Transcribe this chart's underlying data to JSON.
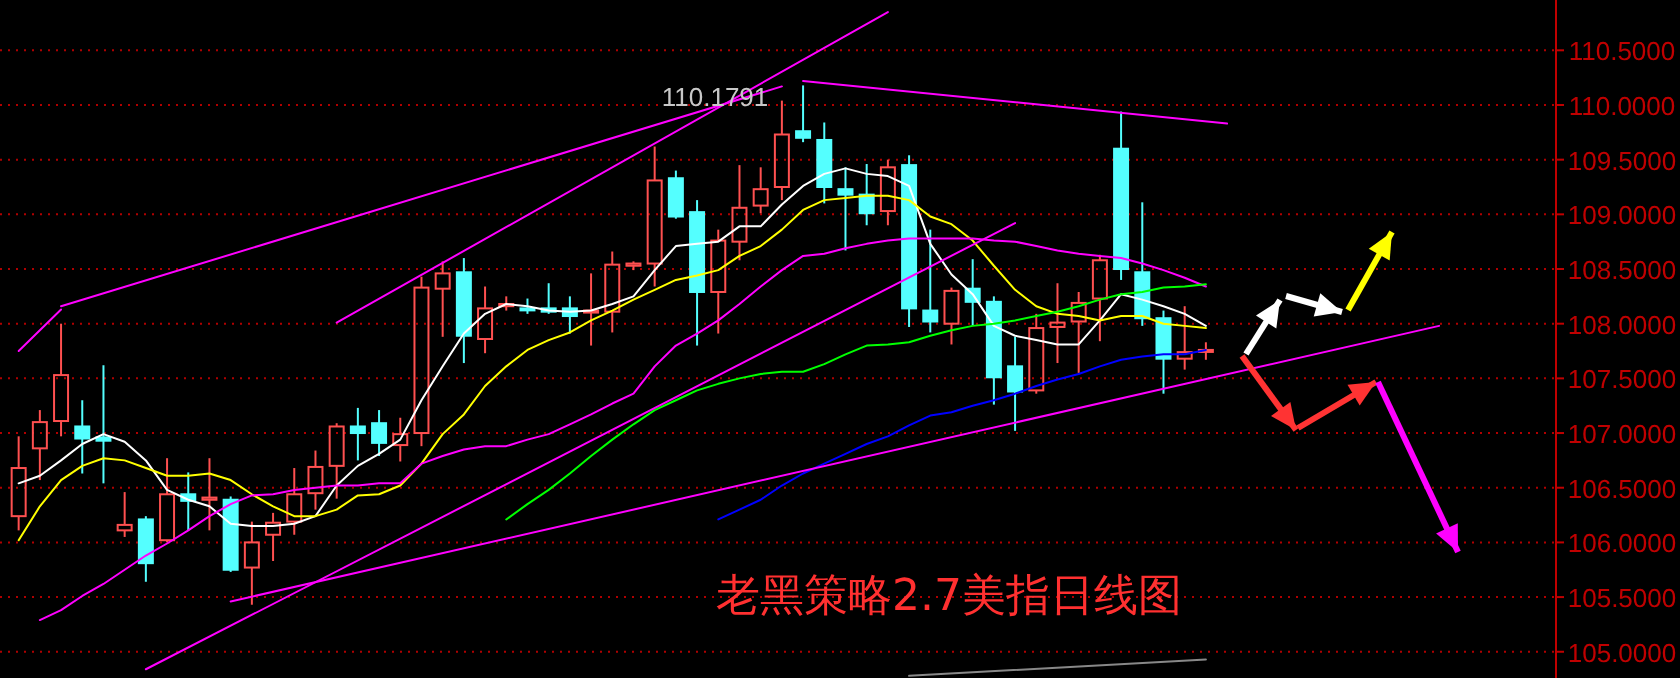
{
  "chart_data": {
    "type": "candlestick",
    "title": "老黑策略2.7美指日线图",
    "annotations": [
      "110.1791"
    ],
    "categories": [
      null,
      null,
      null,
      null,
      null,
      null,
      null,
      null,
      null,
      null,
      null,
      null,
      null,
      null,
      null,
      null,
      null,
      null,
      null,
      null,
      null,
      null,
      null,
      null,
      null,
      null,
      null,
      null,
      null,
      null,
      null,
      null,
      null,
      null,
      null,
      null,
      null,
      null,
      null,
      null,
      null,
      null,
      null,
      null,
      null,
      null,
      null,
      null,
      null,
      null,
      null,
      null,
      null,
      null,
      null,
      null,
      null,
      null,
      null,
      null,
      null,
      null,
      null,
      null,
      null,
      null,
      null,
      null
    ],
    "ohlc": [
      [
        106.24,
        106.97,
        106.11,
        106.68
      ],
      [
        106.86,
        107.21,
        106.57,
        107.1
      ],
      [
        107.11,
        108.0,
        106.97,
        107.53
      ],
      [
        107.06,
        107.3,
        106.63,
        106.95
      ],
      [
        106.96,
        107.62,
        106.54,
        106.93
      ],
      [
        106.11,
        106.46,
        106.05,
        106.16
      ],
      [
        106.21,
        106.24,
        105.64,
        105.81
      ],
      [
        106.02,
        106.77,
        106.0,
        106.44
      ],
      [
        106.44,
        106.64,
        106.11,
        106.38
      ],
      [
        106.39,
        106.77,
        106.11,
        106.41
      ],
      [
        106.39,
        106.42,
        105.73,
        105.75
      ],
      [
        105.77,
        106.19,
        105.43,
        106.0
      ],
      [
        106.07,
        106.27,
        105.83,
        106.18
      ],
      [
        106.19,
        106.68,
        106.07,
        106.44
      ],
      [
        106.45,
        106.84,
        106.3,
        106.69
      ],
      [
        106.7,
        107.09,
        106.4,
        107.06
      ],
      [
        107.06,
        107.23,
        106.75,
        107.0
      ],
      [
        107.09,
        107.21,
        106.79,
        106.91
      ],
      [
        106.89,
        107.14,
        106.74,
        106.99
      ],
      [
        107.0,
        108.43,
        106.88,
        108.33
      ],
      [
        108.32,
        108.57,
        107.88,
        108.46
      ],
      [
        108.47,
        108.6,
        107.64,
        107.89
      ],
      [
        107.86,
        108.34,
        107.73,
        108.14
      ],
      [
        108.16,
        108.25,
        108.12,
        108.18
      ],
      [
        108.14,
        108.23,
        108.09,
        108.13
      ],
      [
        108.14,
        108.37,
        108.09,
        108.11
      ],
      [
        108.14,
        108.25,
        107.91,
        108.07
      ],
      [
        108.11,
        108.46,
        107.8,
        108.12
      ],
      [
        108.11,
        108.66,
        107.92,
        108.54
      ],
      [
        108.53,
        108.57,
        108.49,
        108.55
      ],
      [
        108.55,
        109.62,
        108.34,
        109.31
      ],
      [
        109.33,
        109.4,
        108.96,
        108.98
      ],
      [
        109.02,
        109.13,
        107.8,
        108.29
      ],
      [
        108.29,
        108.86,
        107.91,
        108.76
      ],
      [
        108.75,
        109.45,
        108.58,
        109.06
      ],
      [
        109.08,
        109.43,
        109.01,
        109.23
      ],
      [
        109.25,
        110.04,
        109.13,
        109.73
      ],
      [
        109.76,
        110.1791,
        109.66,
        109.7
      ],
      [
        109.68,
        109.84,
        109.1,
        109.25
      ],
      [
        109.23,
        109.43,
        108.67,
        109.18
      ],
      [
        109.18,
        109.46,
        108.9,
        109.01
      ],
      [
        109.03,
        109.5,
        108.9,
        109.43
      ],
      [
        109.45,
        109.54,
        107.97,
        108.14
      ],
      [
        108.12,
        108.86,
        107.92,
        108.02
      ],
      [
        108.0,
        108.33,
        107.81,
        108.3
      ],
      [
        108.32,
        108.59,
        107.98,
        108.2
      ],
      [
        108.2,
        108.25,
        107.26,
        107.51
      ],
      [
        107.61,
        107.88,
        107.02,
        107.38
      ],
      [
        107.39,
        108.09,
        107.36,
        107.96
      ],
      [
        107.97,
        108.37,
        107.64,
        108.01
      ],
      [
        108.02,
        108.29,
        107.55,
        108.19
      ],
      [
        108.23,
        108.63,
        107.84,
        108.58
      ],
      [
        109.6,
        109.94,
        108.4,
        108.5
      ],
      [
        108.47,
        109.11,
        107.98,
        108.05
      ],
      [
        108.05,
        108.12,
        107.36,
        107.68
      ],
      [
        107.68,
        108.16,
        107.58,
        107.74
      ],
      [
        107.75,
        107.83,
        107.67,
        107.76
      ],
      null,
      null,
      null,
      null,
      null,
      null,
      null,
      null,
      null,
      null,
      null
    ],
    "colors": [
      "#ff5050",
      "#ff5050",
      "#ff5050",
      "#54ffff",
      "#54ffff",
      "#ff5050",
      "#54ffff",
      "#ff5050",
      "#54ffff",
      "#ff5050",
      "#54ffff",
      "#ff5050",
      "#ff5050",
      "#ff5050",
      "#ff5050",
      "#ff5050",
      "#54ffff",
      "#54ffff",
      "#ff5050",
      "#ff5050",
      "#ff5050",
      "#54ffff",
      "#ff5050",
      "#ff5050",
      "#54ffff",
      "#54ffff",
      "#54ffff",
      "#ff5050",
      "#ff5050",
      "#ff5050",
      "#ff5050",
      "#54ffff",
      "#54ffff",
      "#ff5050",
      "#ff5050",
      "#ff5050",
      "#ff5050",
      "#54ffff",
      "#54ffff",
      "#54ffff",
      "#54ffff",
      "#ff5050",
      "#54ffff",
      "#54ffff",
      "#ff5050",
      "#54ffff",
      "#54ffff",
      "#54ffff",
      "#ff5050",
      "#ff5050",
      "#ff5050",
      "#ff5050",
      "#54ffff",
      "#54ffff",
      "#54ffff",
      "#ff5050",
      "#ff5050",
      null,
      null,
      null,
      null,
      null,
      null,
      null,
      null,
      null,
      null,
      null
    ],
    "series": [
      {
        "type": "line",
        "color": "#ffffff",
        "values": [
          106.54,
          106.61,
          106.75,
          106.9,
          106.99,
          106.92,
          106.75,
          106.48,
          106.39,
          106.33,
          106.17,
          106.15,
          106.15,
          106.17,
          106.24,
          106.52,
          106.7,
          106.81,
          106.94,
          107.3,
          107.61,
          107.91,
          108.09,
          108.18,
          108.16,
          108.12,
          108.11,
          108.12,
          108.18,
          108.25,
          108.49,
          108.71,
          108.73,
          108.75,
          108.89,
          108.89,
          109.09,
          109.26,
          109.37,
          109.42,
          109.37,
          109.35,
          109.26,
          108.73,
          108.45,
          108.27,
          107.98,
          107.89,
          107.85,
          107.81,
          107.81,
          108.03,
          108.27,
          108.22,
          108.16,
          108.09,
          107.98,
          null,
          null,
          null,
          null,
          null,
          null,
          null,
          null,
          null,
          null,
          null
        ]
      },
      {
        "type": "line",
        "color": "#ffff00",
        "values": [
          106.02,
          106.33,
          106.57,
          106.7,
          106.77,
          106.75,
          106.68,
          106.61,
          106.61,
          106.63,
          106.57,
          106.44,
          106.33,
          106.24,
          106.24,
          106.3,
          106.43,
          106.44,
          106.52,
          106.72,
          106.99,
          107.17,
          107.43,
          107.61,
          107.76,
          107.85,
          107.92,
          108.03,
          108.12,
          108.22,
          108.31,
          108.4,
          108.44,
          108.49,
          108.62,
          108.71,
          108.86,
          109.04,
          109.13,
          109.15,
          109.17,
          109.17,
          109.13,
          108.98,
          108.91,
          108.76,
          108.53,
          108.31,
          108.16,
          108.09,
          108.07,
          108.03,
          108.07,
          108.07,
          108.0,
          107.98,
          107.96,
          null,
          null,
          null,
          null,
          null,
          null,
          null,
          null,
          null,
          null,
          null
        ]
      },
      {
        "type": "line",
        "color": "#ff00ff",
        "values": [
          null,
          105.29,
          105.38,
          105.51,
          105.62,
          105.75,
          105.88,
          105.99,
          106.11,
          106.24,
          106.35,
          106.43,
          106.44,
          106.48,
          106.5,
          106.52,
          106.52,
          106.54,
          106.54,
          106.72,
          106.79,
          106.85,
          106.88,
          106.88,
          106.94,
          106.99,
          107.08,
          107.17,
          107.27,
          107.36,
          107.61,
          107.8,
          107.91,
          108.03,
          108.18,
          108.34,
          108.49,
          108.62,
          108.64,
          108.69,
          108.73,
          108.76,
          108.78,
          108.78,
          108.78,
          108.78,
          108.76,
          108.75,
          108.71,
          108.67,
          108.64,
          108.62,
          108.6,
          108.55,
          108.49,
          108.42,
          108.34,
          null,
          null,
          null,
          null,
          null,
          null,
          null,
          null,
          null,
          null,
          null
        ]
      },
      {
        "type": "line",
        "color": "#00ff00",
        "values": [
          null,
          null,
          null,
          null,
          null,
          null,
          null,
          null,
          null,
          null,
          null,
          null,
          null,
          null,
          null,
          null,
          null,
          null,
          null,
          null,
          null,
          null,
          null,
          106.21,
          106.35,
          106.48,
          106.63,
          106.79,
          106.94,
          107.08,
          107.21,
          107.3,
          107.39,
          107.45,
          107.5,
          107.54,
          107.56,
          107.56,
          107.63,
          107.72,
          107.8,
          107.81,
          107.83,
          107.89,
          107.94,
          107.98,
          108.0,
          108.03,
          108.07,
          108.11,
          108.16,
          108.22,
          108.27,
          108.29,
          108.33,
          108.34,
          108.36,
          null,
          null,
          null,
          null,
          null,
          null,
          null,
          null,
          null,
          null,
          null
        ]
      },
      {
        "type": "line",
        "color": "#0000ff",
        "values": [
          null,
          null,
          null,
          null,
          null,
          null,
          null,
          null,
          null,
          null,
          null,
          null,
          null,
          null,
          null,
          null,
          null,
          null,
          null,
          null,
          null,
          null,
          null,
          null,
          null,
          null,
          null,
          null,
          null,
          null,
          null,
          null,
          null,
          106.21,
          106.3,
          106.39,
          106.52,
          106.63,
          106.72,
          106.81,
          106.9,
          106.97,
          107.07,
          107.16,
          107.19,
          107.25,
          107.3,
          107.36,
          107.43,
          107.49,
          107.54,
          107.61,
          107.67,
          107.7,
          107.72,
          107.72,
          107.76,
          null,
          null,
          null,
          null,
          null,
          null,
          null,
          null,
          null,
          null,
          null
        ]
      },
      {
        "type": "line",
        "color": "#ff00ff",
        "values": [
          107.75,
          null,
          108.13,
          null,
          null,
          null,
          null,
          null,
          null,
          null,
          null,
          null,
          null,
          null,
          null,
          null,
          null,
          null,
          null,
          null,
          null,
          null,
          null,
          null,
          null,
          null,
          null,
          null,
          null,
          null,
          null,
          null,
          null,
          null,
          null,
          null,
          null,
          null,
          null,
          null,
          null,
          null,
          null,
          null,
          null,
          null,
          null,
          null,
          null,
          null,
          null,
          null,
          null,
          null,
          null,
          null,
          null,
          null,
          null,
          null,
          null,
          null,
          null,
          null,
          null,
          null,
          null,
          null
        ]
      },
      {
        "type": "line",
        "color": "#ff00ff",
        "values": [
          null,
          null,
          108.16,
          null,
          null,
          null,
          null,
          null,
          null,
          null,
          null,
          null,
          null,
          null,
          null,
          null,
          null,
          null,
          null,
          null,
          null,
          null,
          null,
          null,
          null,
          null,
          null,
          null,
          null,
          null,
          null,
          null,
          null,
          null,
          null,
          null,
          110.17,
          null,
          null,
          null,
          null,
          null,
          null,
          null,
          null,
          null,
          null,
          null,
          null,
          null,
          null,
          null,
          null,
          null,
          null,
          null,
          null,
          null,
          null,
          null,
          null,
          null,
          null,
          null,
          null,
          null,
          null,
          null
        ]
      },
      {
        "type": "line",
        "color": "#ff00ff",
        "values": [
          null,
          null,
          null,
          null,
          null,
          null,
          null,
          null,
          null,
          null,
          null,
          null,
          null,
          null,
          null,
          108.01,
          null,
          null,
          null,
          null,
          null,
          null,
          null,
          null,
          null,
          null,
          null,
          null,
          null,
          null,
          null,
          null,
          null,
          null,
          null,
          null,
          null,
          null,
          null,
          null,
          null,
          110.85,
          null,
          null,
          null,
          null,
          null,
          null,
          null,
          null,
          null,
          null,
          null,
          null,
          null,
          null,
          null,
          null,
          null,
          null,
          null,
          null,
          null,
          null,
          null,
          null,
          null,
          null
        ]
      },
      {
        "type": "line",
        "color": "#ff00ff",
        "values": [
          null,
          null,
          null,
          null,
          null,
          null,
          null,
          null,
          null,
          null,
          null,
          null,
          null,
          null,
          null,
          null,
          null,
          null,
          null,
          null,
          null,
          null,
          null,
          null,
          null,
          null,
          null,
          null,
          null,
          null,
          null,
          null,
          null,
          null,
          null,
          null,
          null,
          110.22,
          null,
          null,
          null,
          null,
          null,
          null,
          null,
          null,
          null,
          null,
          null,
          null,
          null,
          null,
          null,
          null,
          null,
          null,
          null,
          109.83,
          null,
          null,
          null,
          null,
          null,
          null,
          null,
          null,
          null,
          null
        ]
      },
      {
        "type": "line",
        "color": "#ff00ff",
        "values": [
          null,
          null,
          null,
          null,
          null,
          null,
          104.84,
          null,
          null,
          null,
          null,
          null,
          null,
          null,
          null,
          null,
          null,
          null,
          null,
          null,
          null,
          null,
          null,
          null,
          null,
          null,
          null,
          null,
          null,
          null,
          null,
          null,
          null,
          null,
          null,
          null,
          null,
          null,
          null,
          null,
          null,
          null,
          null,
          null,
          null,
          null,
          null,
          108.92,
          null,
          null,
          null,
          null,
          null,
          null,
          null,
          null,
          null,
          null,
          null,
          null,
          null,
          null,
          null,
          null,
          null,
          null,
          null,
          null
        ]
      },
      {
        "type": "line",
        "color": "#ff00ff",
        "values": [
          null,
          null,
          null,
          null,
          null,
          null,
          null,
          null,
          null,
          null,
          105.46,
          null,
          null,
          null,
          null,
          null,
          null,
          null,
          null,
          null,
          null,
          null,
          null,
          null,
          null,
          null,
          null,
          null,
          null,
          null,
          null,
          null,
          null,
          null,
          null,
          null,
          null,
          null,
          null,
          null,
          null,
          null,
          null,
          null,
          null,
          null,
          null,
          null,
          null,
          null,
          null,
          null,
          null,
          null,
          null,
          null,
          null,
          null,
          null,
          null,
          null,
          null,
          null,
          null,
          null,
          null,
          null,
          107.98
        ]
      },
      {
        "type": "line",
        "color": "#888888",
        "values": [
          null,
          null,
          null,
          null,
          null,
          null,
          null,
          null,
          null,
          null,
          null,
          null,
          null,
          null,
          null,
          null,
          null,
          null,
          null,
          null,
          null,
          null,
          null,
          null,
          null,
          null,
          null,
          null,
          null,
          null,
          null,
          null,
          null,
          null,
          null,
          null,
          null,
          null,
          null,
          null,
          null,
          null,
          104.78,
          null,
          null,
          null,
          null,
          null,
          null,
          null,
          null,
          null,
          null,
          null,
          null,
          null,
          104.93,
          null,
          null,
          null,
          null,
          null,
          null,
          null,
          null,
          null,
          null,
          null
        ]
      }
    ],
    "ylim": [
      104.76,
      110.96
    ],
    "yticks": [
      {
        "value": 105,
        "label": "105.0000"
      },
      {
        "value": 105.5,
        "label": "105.5000"
      },
      {
        "value": 106,
        "label": "106.0000"
      },
      {
        "value": 106.5,
        "label": "106.5000"
      },
      {
        "value": 107,
        "label": "107.0000"
      },
      {
        "value": 107.5,
        "label": "107.5000"
      },
      {
        "value": 108,
        "label": "108.0000"
      },
      {
        "value": 108.5,
        "label": "108.5000"
      },
      {
        "value": 109,
        "label": "109.0000"
      },
      {
        "value": 109.5,
        "label": "109.5000"
      },
      {
        "value": 110,
        "label": "110.0000"
      },
      {
        "value": 110.5,
        "label": "110.5000"
      }
    ],
    "tick_labels": "y",
    "grid": "y"
  }
}
